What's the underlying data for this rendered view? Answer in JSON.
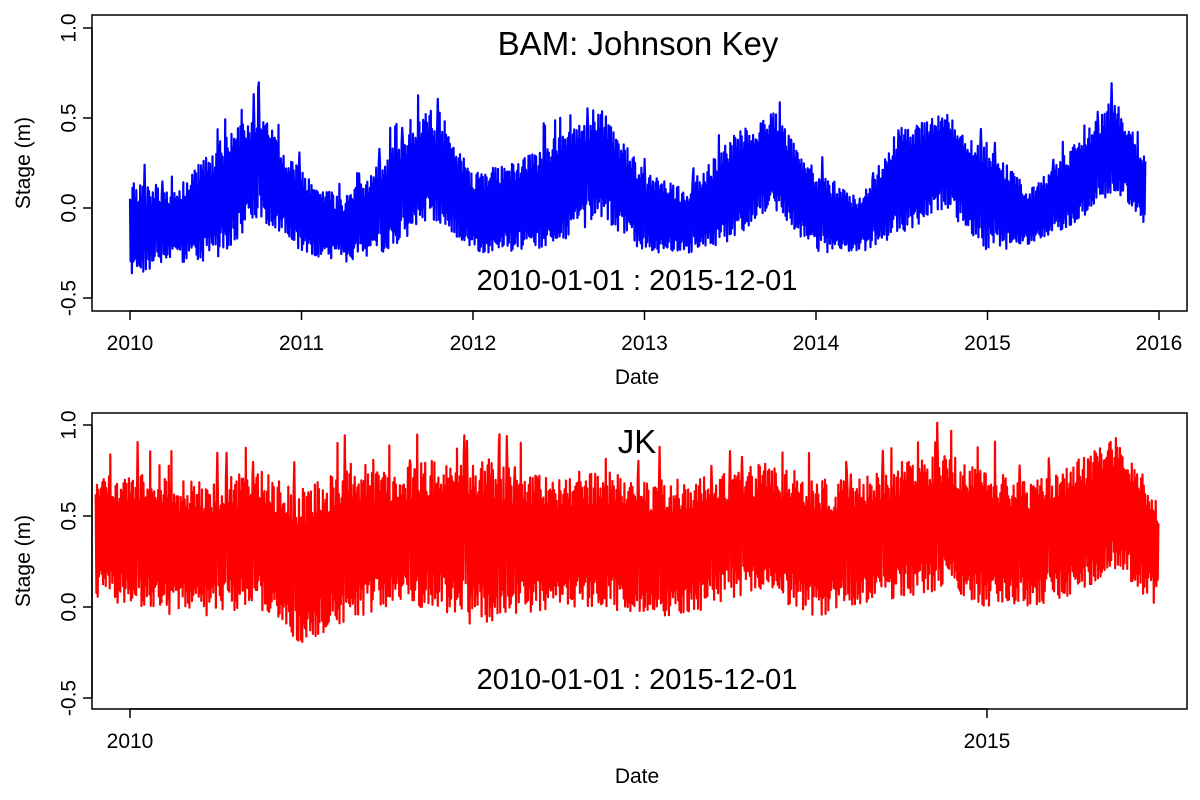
{
  "chart_data": [
    {
      "type": "line",
      "title": "BAM: Johnson Key",
      "subtitle": "2010-01-01  :  2015-12-01",
      "xlabel": "Date",
      "ylabel": "Stage (m)",
      "xlim": [
        2010.0,
        2016.0
      ],
      "ylim": [
        -0.5,
        1.0
      ],
      "x_ticks": [
        2010,
        2011,
        2012,
        2013,
        2014,
        2015,
        2016
      ],
      "x_tick_labels": [
        "2010",
        "2011",
        "2012",
        "2013",
        "2014",
        "2015",
        "2016"
      ],
      "y_ticks": [
        -0.5,
        0.0,
        0.5,
        1.0
      ],
      "y_tick_labels": [
        "-0.5",
        "0.0",
        "0.5",
        "1.0"
      ],
      "x_start": 2010.0,
      "x_end": 2015.92,
      "grid": false,
      "series": [
        {
          "color": "#0000ff",
          "envelope": {
            "x": [
              2010.0,
              2010.25,
              2010.5,
              2010.75,
              2011.0,
              2011.25,
              2011.5,
              2011.75,
              2012.0,
              2012.25,
              2012.5,
              2012.75,
              2013.0,
              2013.25,
              2013.5,
              2013.75,
              2014.0,
              2014.25,
              2014.5,
              2014.75,
              2015.0,
              2015.25,
              2015.5,
              2015.75,
              2015.92
            ],
            "upper": [
              0.15,
              0.1,
              0.35,
              0.55,
              0.2,
              0.05,
              0.3,
              0.55,
              0.2,
              0.25,
              0.4,
              0.55,
              0.2,
              0.1,
              0.4,
              0.55,
              0.2,
              0.05,
              0.45,
              0.55,
              0.35,
              0.1,
              0.35,
              0.6,
              0.3
            ],
            "lower": [
              -0.4,
              -0.3,
              -0.3,
              -0.05,
              -0.25,
              -0.3,
              -0.25,
              -0.05,
              -0.25,
              -0.25,
              -0.2,
              -0.05,
              -0.25,
              -0.25,
              -0.2,
              0.0,
              -0.25,
              -0.25,
              -0.15,
              0.0,
              -0.25,
              -0.2,
              -0.1,
              0.1,
              -0.1
            ]
          }
        }
      ]
    },
    {
      "type": "line",
      "title": "JK",
      "subtitle": "2010-01-01  :  2015-12-01",
      "xlabel": "Date",
      "ylabel": "Stage (m)",
      "xlim": [
        2010.0,
        2016.0
      ],
      "ylim": [
        -0.5,
        1.0
      ],
      "x_ticks": [
        2010,
        2015
      ],
      "x_tick_labels": [
        "2010",
        "2015"
      ],
      "y_ticks": [
        -0.5,
        0.0,
        0.5,
        1.0
      ],
      "y_tick_labels": [
        "-0.5",
        "0.0",
        "0.5",
        "1.0"
      ],
      "x_start": 2009.8,
      "x_end": 2016.0,
      "grid": false,
      "series": [
        {
          "color": "#ff0000",
          "envelope": {
            "x": [
              2009.8,
              2010.0,
              2010.25,
              2010.5,
              2010.75,
              2011.0,
              2011.25,
              2011.5,
              2011.75,
              2012.0,
              2012.25,
              2012.5,
              2012.75,
              2013.0,
              2013.25,
              2013.5,
              2013.75,
              2014.0,
              2014.25,
              2014.5,
              2014.75,
              2015.0,
              2015.25,
              2015.5,
              2015.75,
              2016.0
            ],
            "upper": [
              0.75,
              0.75,
              0.7,
              0.7,
              0.75,
              0.65,
              0.75,
              0.75,
              0.8,
              0.85,
              0.75,
              0.7,
              0.75,
              0.7,
              0.7,
              0.75,
              0.8,
              0.7,
              0.7,
              0.8,
              0.85,
              0.75,
              0.7,
              0.8,
              0.95,
              0.6
            ],
            "lower": [
              0.05,
              0.0,
              -0.05,
              -0.05,
              0.0,
              -0.2,
              -0.1,
              0.0,
              0.0,
              -0.1,
              -0.05,
              0.0,
              0.0,
              -0.05,
              -0.05,
              0.05,
              0.05,
              -0.05,
              0.0,
              0.05,
              0.1,
              0.0,
              0.0,
              0.05,
              0.2,
              0.0
            ]
          }
        }
      ]
    }
  ]
}
